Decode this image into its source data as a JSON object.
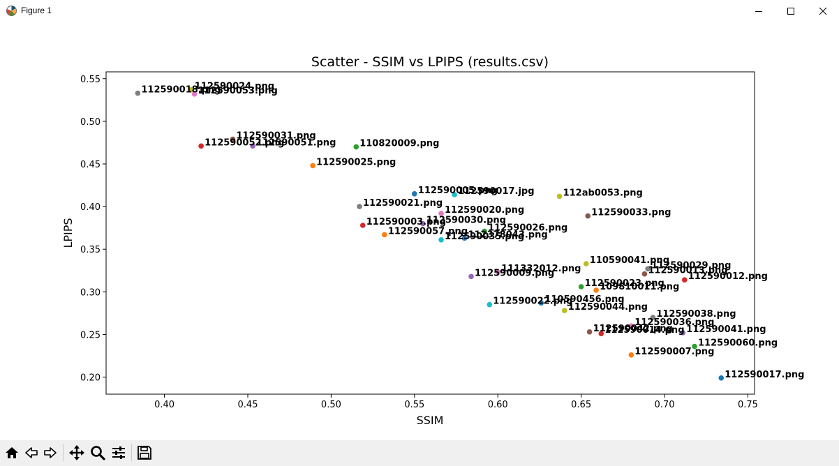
{
  "window": {
    "title": "Figure 1",
    "icons": [
      "matplotlib-icon",
      "minimize-icon",
      "maximize-icon",
      "close-icon"
    ]
  },
  "toolbar": {
    "buttons": [
      "home-icon",
      "back-icon",
      "forward-icon",
      "pan-icon",
      "zoom-icon",
      "configure-subplots-icon",
      "save-icon"
    ]
  },
  "chart_data": {
    "type": "scatter",
    "title": "Scatter - SSIM vs LPIPS (results.csv)",
    "xlabel": "SSIM",
    "ylabel": "LPIPS",
    "xlim": [
      0.365,
      0.754
    ],
    "ylim": [
      0.18,
      0.558
    ],
    "xticks": [
      "0.40",
      "0.45",
      "0.50",
      "0.55",
      "0.60",
      "0.65",
      "0.70",
      "0.75"
    ],
    "yticks": [
      "0.20",
      "0.25",
      "0.30",
      "0.35",
      "0.40",
      "0.45",
      "0.50",
      "0.55"
    ],
    "grid": false,
    "points": [
      {
        "label": "112590017.png",
        "x": 0.734,
        "y": 0.199,
        "color": "#1f77b4"
      },
      {
        "label": "112590007.png",
        "x": 0.68,
        "y": 0.226,
        "color": "#ff7f0e"
      },
      {
        "label": "112590060.png",
        "x": 0.718,
        "y": 0.236,
        "color": "#2ca02c"
      },
      {
        "label": "112590014.png",
        "x": 0.662,
        "y": 0.251,
        "color": "#d62728"
      },
      {
        "label": "112590041.png",
        "x": 0.711,
        "y": 0.252,
        "color": "#9467bd"
      },
      {
        "label": "112590042.png",
        "x": 0.655,
        "y": 0.253,
        "color": "#8c564b"
      },
      {
        "label": "112590036.png",
        "x": 0.68,
        "y": 0.26,
        "color": "#e377c2"
      },
      {
        "label": "112590038.png",
        "x": 0.693,
        "y": 0.27,
        "color": "#7f7f7f"
      },
      {
        "label": "112590044.png",
        "x": 0.64,
        "y": 0.278,
        "color": "#bcbd22"
      },
      {
        "label": "112590022.png",
        "x": 0.595,
        "y": 0.285,
        "color": "#17becf"
      },
      {
        "label": "110590456.png",
        "x": 0.626,
        "y": 0.287,
        "color": "#1f77b4"
      },
      {
        "label": "109810011.png",
        "x": 0.659,
        "y": 0.302,
        "color": "#ff7f0e"
      },
      {
        "label": "112590023.png",
        "x": 0.65,
        "y": 0.306,
        "color": "#2ca02c"
      },
      {
        "label": "112590012.png",
        "x": 0.712,
        "y": 0.314,
        "color": "#d62728"
      },
      {
        "label": "112590009.png",
        "x": 0.584,
        "y": 0.318,
        "color": "#9467bd"
      },
      {
        "label": "112590013.png",
        "x": 0.688,
        "y": 0.321,
        "color": "#8c564b"
      },
      {
        "label": "111332012.png",
        "x": 0.6,
        "y": 0.323,
        "color": "#e377c2"
      },
      {
        "label": "112590029.png",
        "x": 0.69,
        "y": 0.327,
        "color": "#7f7f7f"
      },
      {
        "label": "110590041.png",
        "x": 0.653,
        "y": 0.333,
        "color": "#bcbd22"
      },
      {
        "label": "112590035.png",
        "x": 0.566,
        "y": 0.361,
        "color": "#17becf"
      },
      {
        "label": "112378043.png",
        "x": 0.58,
        "y": 0.363,
        "color": "#1f77b4"
      },
      {
        "label": "112590057.png",
        "x": 0.532,
        "y": 0.367,
        "color": "#ff7f0e"
      },
      {
        "label": "112590026.png",
        "x": 0.592,
        "y": 0.371,
        "color": "#2ca02c"
      },
      {
        "label": "112590003.png",
        "x": 0.519,
        "y": 0.378,
        "color": "#d62728"
      },
      {
        "label": "112590030.png",
        "x": 0.555,
        "y": 0.38,
        "color": "#9467bd"
      },
      {
        "label": "112590033.png",
        "x": 0.654,
        "y": 0.389,
        "color": "#8c564b"
      },
      {
        "label": "112590020.png",
        "x": 0.566,
        "y": 0.392,
        "color": "#e377c2"
      },
      {
        "label": "112590021.png",
        "x": 0.517,
        "y": 0.4,
        "color": "#7f7f7f"
      },
      {
        "label": "112ab0053.png",
        "x": 0.637,
        "y": 0.412,
        "color": "#bcbd22"
      },
      {
        "label": "112590017.jpg",
        "x": 0.574,
        "y": 0.414,
        "color": "#17becf"
      },
      {
        "label": "112590005.png",
        "x": 0.55,
        "y": 0.415,
        "color": "#1f77b4"
      },
      {
        "label": "112590025.png",
        "x": 0.489,
        "y": 0.448,
        "color": "#ff7f0e"
      },
      {
        "label": "110820009.png",
        "x": 0.515,
        "y": 0.47,
        "color": "#2ca02c"
      },
      {
        "label": "112590052.png",
        "x": 0.422,
        "y": 0.471,
        "color": "#d62728"
      },
      {
        "label": "112590051.png",
        "x": 0.453,
        "y": 0.471,
        "color": "#9467bd"
      },
      {
        "label": "112590031.png",
        "x": 0.441,
        "y": 0.479,
        "color": "#8c564b"
      },
      {
        "label": "112590053.png",
        "x": 0.418,
        "y": 0.532,
        "color": "#e377c2"
      },
      {
        "label": "112590018.png",
        "x": 0.384,
        "y": 0.533,
        "color": "#7f7f7f"
      },
      {
        "label": "112590024.png",
        "x": 0.416,
        "y": 0.537,
        "color": "#bcbd22"
      }
    ]
  }
}
